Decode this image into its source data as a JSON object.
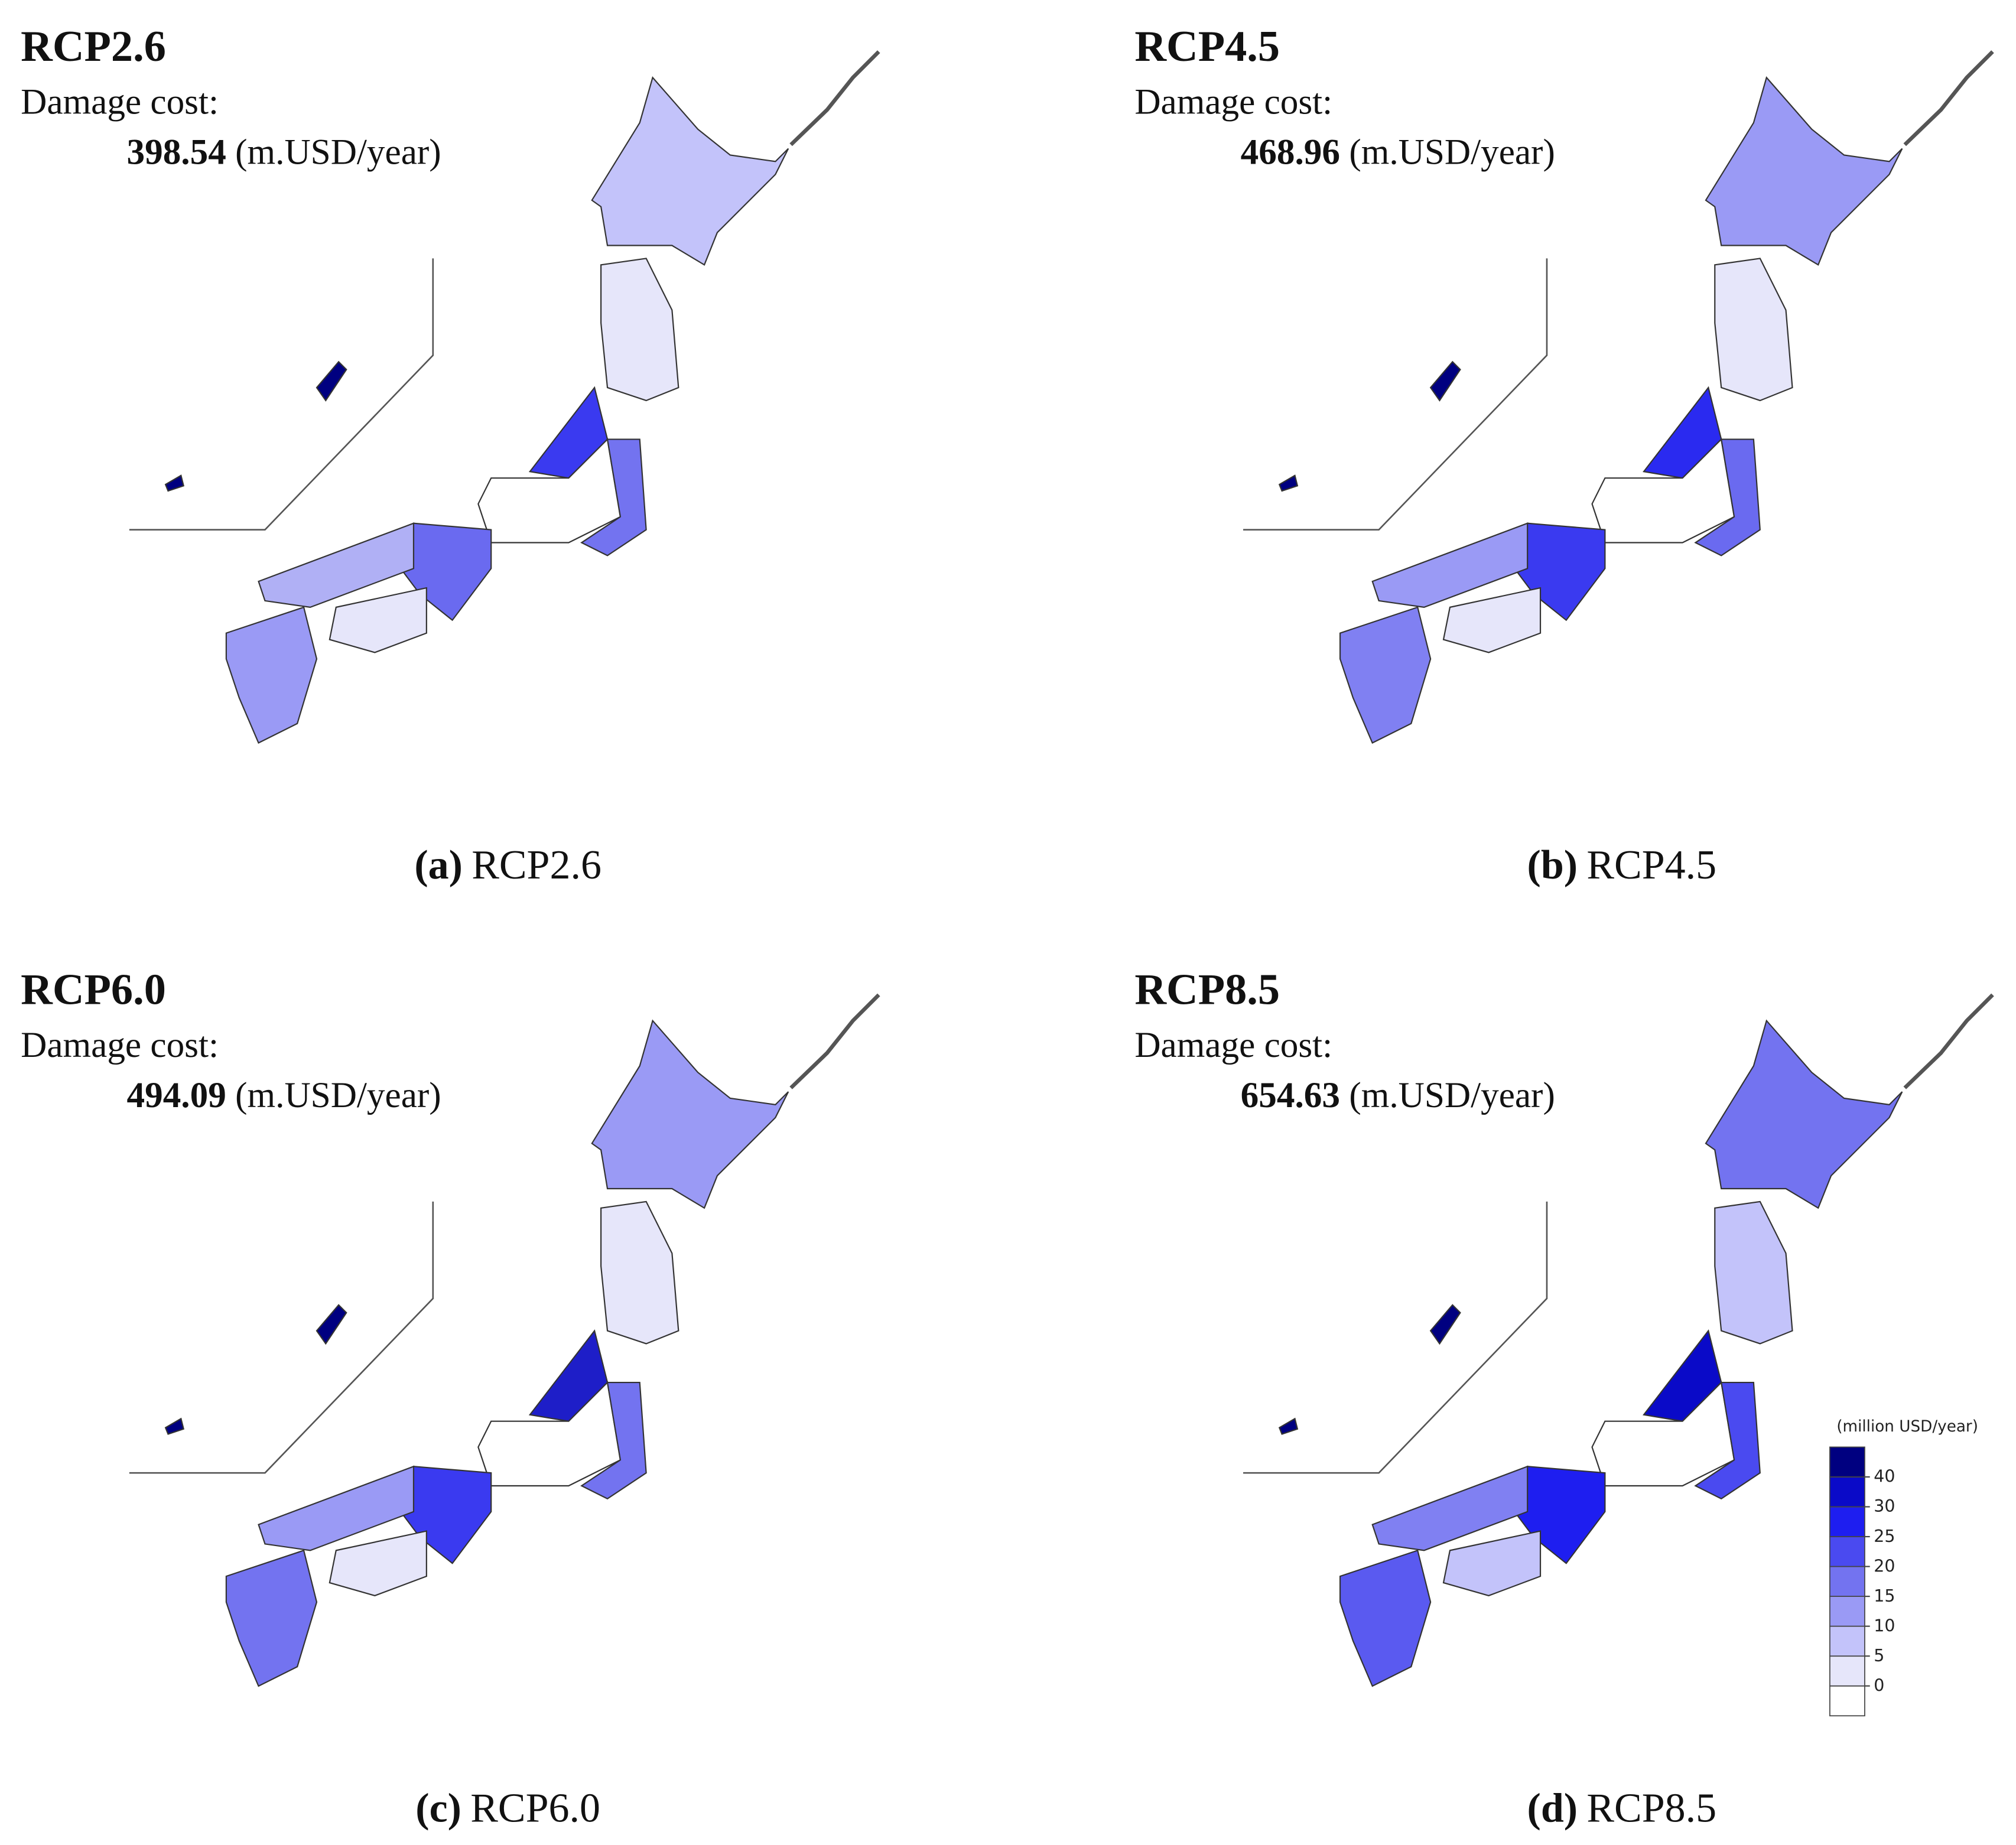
{
  "panels": [
    {
      "title": "RCP2.6",
      "cost_label": "Damage cost:",
      "cost": "398.54",
      "unit": "(m.USD/year)",
      "caption": {
        "tag": "(a)",
        "text": "RCP2.6"
      }
    },
    {
      "title": "RCP4.5",
      "cost_label": "Damage cost:",
      "cost": "468.96",
      "unit": "(m.USD/year)",
      "caption": {
        "tag": "(b)",
        "text": "RCP4.5"
      }
    },
    {
      "title": "RCP6.0",
      "cost_label": "Damage cost:",
      "cost": "494.09",
      "unit": "(m.USD/year)",
      "caption": {
        "tag": "(c)",
        "text": "RCP6.0"
      }
    },
    {
      "title": "RCP8.5",
      "cost_label": "Damage cost:",
      "cost": "654.63",
      "unit": "(m.USD/year)",
      "caption": {
        "tag": "(d)",
        "text": "RCP8.5"
      }
    }
  ],
  "legend": {
    "title": "(million USD/year)",
    "ticks": [
      0,
      5,
      10,
      15,
      20,
      25,
      30,
      40
    ],
    "colors": [
      "#ffffff",
      "#e6e6fa",
      "#c3c3fa",
      "#9a9af5",
      "#7373f0",
      "#4a4af0",
      "#1e1ef0",
      "#0a0ac8",
      "#000080"
    ]
  }
}
